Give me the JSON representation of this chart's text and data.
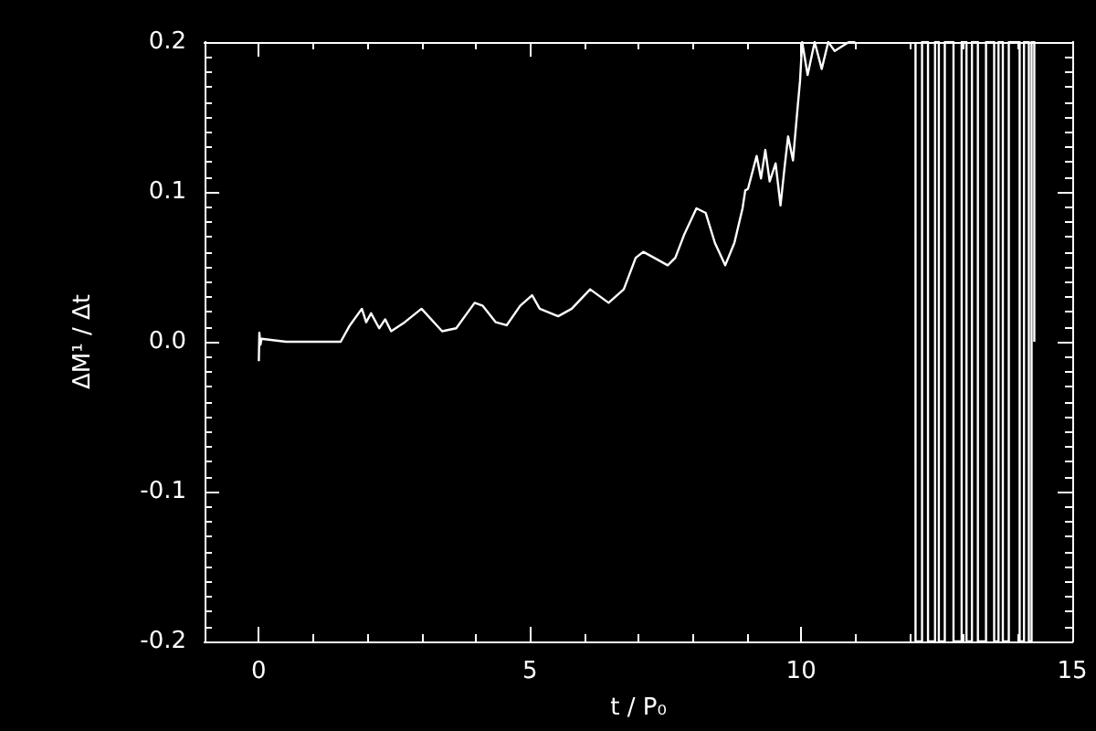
{
  "chart_data": {
    "type": "line",
    "color": "#ffffff",
    "xlabel": "t / P₀",
    "ylabel": "ΔM¹ / Δt",
    "xlim": [
      -1,
      15
    ],
    "ylim": [
      -0.2,
      0.2
    ],
    "xticks": [
      0,
      5,
      10,
      15
    ],
    "yticks": [
      -0.2,
      -0.1,
      {
        "value": 0,
        "label": "0.0"
      },
      0.1,
      0.2
    ],
    "grid": false,
    "marker": "none",
    "x": [
      0,
      0.01,
      0.03,
      0.05,
      0.5,
      1.0,
      1.51,
      1.68,
      1.9,
      1.98,
      2.07,
      2.22,
      2.33,
      2.44,
      2.69,
      3.0,
      3.38,
      3.64,
      3.98,
      4.13,
      4.37,
      4.57,
      4.82,
      5.04,
      5.18,
      5.52,
      5.77,
      6.11,
      6.45,
      6.73,
      6.95,
      7.09,
      7.29,
      7.54,
      7.68,
      7.85,
      8.07,
      8.24,
      8.41,
      8.6,
      8.77,
      8.92,
      8.97,
      9.02,
      9.18,
      9.26,
      9.34,
      9.42,
      9.53,
      9.62,
      9.7,
      9.76,
      9.85,
      9.93,
      9.98,
      10.02,
      10.12,
      10.25,
      10.38,
      10.5,
      10.62,
      10.88,
      11.0,
      11.5,
      12.11,
      12.11,
      12.23,
      12.23,
      12.34,
      12.34,
      12.47,
      12.47,
      12.54,
      12.54,
      12.65,
      12.65,
      12.81,
      12.81,
      12.96,
      12.96,
      13.05,
      13.05,
      13.15,
      13.15,
      13.26,
      13.26,
      13.41,
      13.41,
      13.56,
      13.56,
      13.64,
      13.64,
      13.72,
      13.72,
      13.83,
      13.83,
      14.03,
      14.03,
      14.11,
      14.11,
      14.2,
      14.2,
      14.25,
      14.25,
      14.3,
      14.3
    ],
    "values": [
      -0.013,
      0.006,
      -0.002,
      0.002,
      0.0,
      0.0,
      0.0,
      0.011,
      0.022,
      0.013,
      0.019,
      0.009,
      0.015,
      0.007,
      0.013,
      0.022,
      0.007,
      0.009,
      0.026,
      0.024,
      0.013,
      0.011,
      0.024,
      0.031,
      0.022,
      0.017,
      0.022,
      0.035,
      0.026,
      0.035,
      0.056,
      0.06,
      0.056,
      0.051,
      0.056,
      0.072,
      0.089,
      0.086,
      0.066,
      0.051,
      0.066,
      0.089,
      0.101,
      0.102,
      0.124,
      0.109,
      0.128,
      0.107,
      0.119,
      0.091,
      0.118,
      0.137,
      0.121,
      0.154,
      0.174,
      0.2,
      0.178,
      0.2,
      0.182,
      0.2,
      0.194,
      0.2,
      0.2,
      null,
      0.2,
      -0.2,
      -0.2,
      0.2,
      0.2,
      -0.2,
      -0.2,
      0.2,
      0.2,
      -0.2,
      -0.2,
      0.2,
      0.2,
      -0.2,
      -0.2,
      0.2,
      0.2,
      -0.2,
      -0.2,
      0.2,
      0.2,
      -0.2,
      -0.2,
      0.2,
      0.2,
      -0.2,
      -0.2,
      0.2,
      0.2,
      -0.2,
      -0.2,
      0.2,
      0.2,
      -0.2,
      -0.2,
      0.2,
      0.2,
      -0.2,
      -0.2,
      0.2,
      0.2,
      0.0
    ]
  }
}
